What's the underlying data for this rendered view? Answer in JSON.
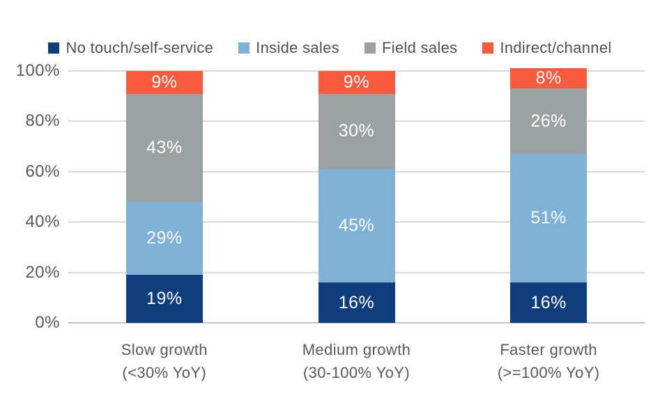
{
  "chart_data": {
    "type": "bar",
    "variant": "stacked-100-percent-column",
    "categories": [
      {
        "line1": "Slow growth",
        "line2": "(<30% YoY)"
      },
      {
        "line1": "Medium growth",
        "line2": "(30-100% YoY)"
      },
      {
        "line1": "Faster growth",
        "line2": "(>=100% YoY)"
      }
    ],
    "series": [
      {
        "name": "No touch/self-service",
        "color": "#0f3e7f",
        "values": [
          19,
          16,
          16
        ],
        "labels": [
          "19%",
          "16%",
          "16%"
        ]
      },
      {
        "name": "Inside sales",
        "color": "#7fb0d5",
        "values": [
          29,
          45,
          51
        ],
        "labels": [
          "29%",
          "45%",
          "51%"
        ]
      },
      {
        "name": "Field sales",
        "color": "#9ba0a3",
        "values": [
          43,
          30,
          26
        ],
        "labels": [
          "43%",
          "30%",
          "26%"
        ]
      },
      {
        "name": "Indirect/channel",
        "color": "#fb5a3c",
        "values": [
          9,
          9,
          8
        ],
        "labels": [
          "9%",
          "9%",
          "8%"
        ]
      }
    ],
    "y_axis": {
      "min": 0,
      "max": 100,
      "ticks": [
        "0%",
        "20%",
        "40%",
        "60%",
        "80%",
        "100%"
      ]
    },
    "grid": true,
    "legend_position": "top",
    "data_labels": "inside-center-white"
  },
  "colors": {
    "background": "#ffffff",
    "grid_line": "#d8d8d8",
    "axis_zero_line": "#c2c2c2",
    "axis_text": "#595959",
    "legend_text": "#4f4f4f",
    "bar_label_text": "#ffffff"
  }
}
